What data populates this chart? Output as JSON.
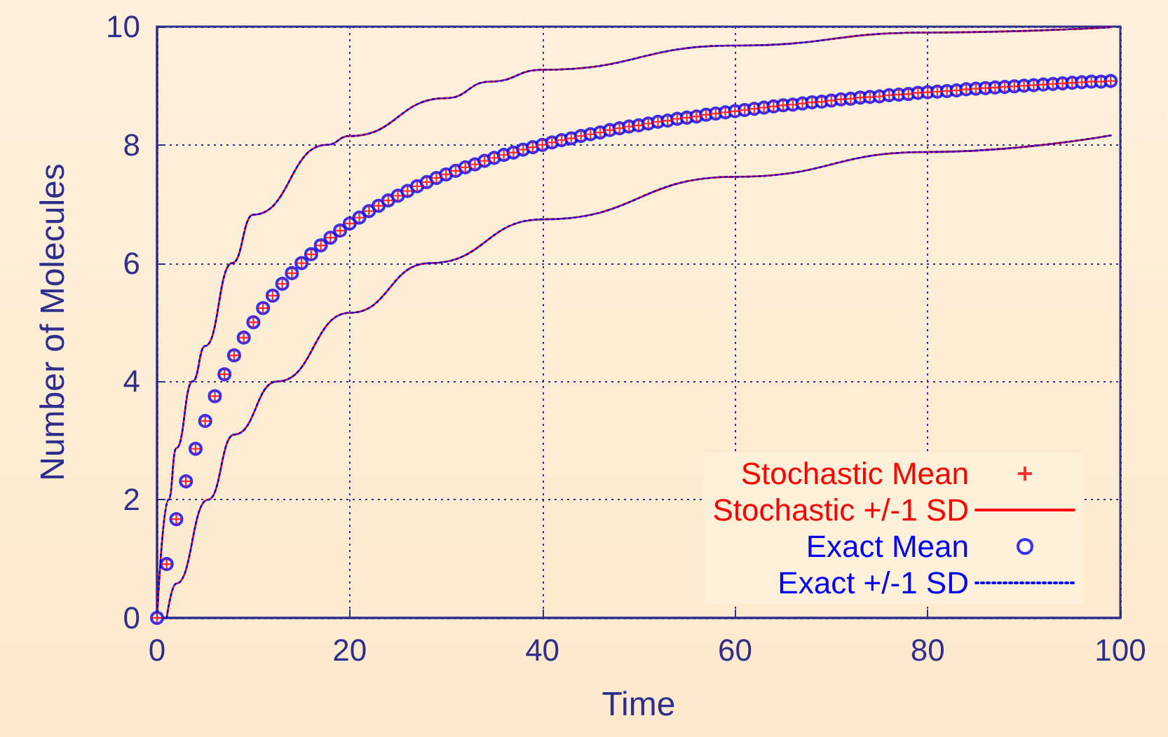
{
  "chart_data": {
    "type": "line",
    "xlabel": "Time",
    "ylabel": "Number of Molecules",
    "xlim": [
      0,
      100
    ],
    "ylim": [
      0,
      10
    ],
    "xticks": [
      0,
      20,
      40,
      60,
      80,
      100
    ],
    "yticks": [
      0,
      2,
      4,
      6,
      8,
      10
    ],
    "grid": true,
    "legend": "bottom right",
    "series": [
      {
        "name": "Stochastic Mean",
        "type": "scatter",
        "marker": "cross",
        "color": "#ff0000",
        "x": [
          0,
          1,
          2,
          3,
          4,
          5,
          6,
          7,
          8,
          9,
          10,
          11,
          12,
          13,
          14,
          15,
          16,
          17,
          18,
          19,
          20,
          21,
          22,
          23,
          24,
          25,
          26,
          27,
          28,
          29,
          30,
          31,
          32,
          33,
          34,
          35,
          36,
          37,
          38,
          39,
          40,
          41,
          42,
          43,
          44,
          45,
          46,
          47,
          48,
          49,
          50,
          51,
          52,
          53,
          54,
          55,
          56,
          57,
          58,
          59,
          60,
          61,
          62,
          63,
          64,
          65,
          66,
          67,
          68,
          69,
          70,
          71,
          72,
          73,
          74,
          75,
          76,
          77,
          78,
          79,
          80,
          81,
          82,
          83,
          84,
          85,
          86,
          87,
          88,
          89,
          90,
          91,
          92,
          93,
          94,
          95,
          96,
          97,
          98,
          99
        ],
        "values": [
          0,
          0.91,
          1.67,
          2.31,
          2.86,
          3.33,
          3.75,
          4.12,
          4.44,
          4.74,
          5.0,
          5.24,
          5.45,
          5.65,
          5.83,
          6.0,
          6.15,
          6.3,
          6.43,
          6.55,
          6.67,
          6.77,
          6.88,
          6.97,
          7.06,
          7.14,
          7.22,
          7.3,
          7.37,
          7.44,
          7.5,
          7.56,
          7.62,
          7.67,
          7.73,
          7.78,
          7.83,
          7.87,
          7.92,
          7.96,
          8.0,
          8.04,
          8.08,
          8.11,
          8.15,
          8.18,
          8.21,
          8.25,
          8.28,
          8.31,
          8.33,
          8.36,
          8.39,
          8.41,
          8.44,
          8.46,
          8.48,
          8.51,
          8.53,
          8.55,
          8.57,
          8.59,
          8.61,
          8.63,
          8.65,
          8.67,
          8.68,
          8.7,
          8.72,
          8.73,
          8.75,
          8.77,
          8.78,
          8.8,
          8.81,
          8.82,
          8.84,
          8.85,
          8.86,
          8.88,
          8.89,
          8.9,
          8.91,
          8.92,
          8.94,
          8.95,
          8.96,
          8.97,
          8.98,
          8.99,
          9.0,
          9.01,
          9.02,
          9.03,
          9.04,
          9.05,
          9.06,
          9.07,
          9.07,
          9.08
        ]
      },
      {
        "name": "Stochastic +/-1 SD",
        "marker": "none",
        "line_style": "solid",
        "color": "#ff0000",
        "x": [
          0,
          1.2,
          2,
          3.7,
          5,
          7.8,
          10,
          17.6,
          20,
          30,
          34.6,
          40,
          60,
          80,
          99
        ],
        "values": [
          0,
          2,
          2.87,
          4,
          4.6,
          6,
          6.82,
          8,
          8.15,
          8.79,
          9.07,
          9.27,
          9.68,
          9.9,
          9.99
        ]
      },
      {
        "marker": "none",
        "line_style": "solid",
        "color": "#ff0000",
        "x": [
          1,
          2,
          5.3,
          8,
          12.5,
          20,
          28.3,
          40,
          60,
          80,
          99
        ],
        "values": [
          0,
          0.58,
          2,
          3.1,
          4,
          5.16,
          6,
          6.74,
          7.46,
          7.88,
          8.16
        ]
      },
      {
        "name": "Exact Mean",
        "type": "scatter",
        "marker": "circle",
        "color": "#0000ff",
        "x": [
          0,
          1,
          2,
          3,
          4,
          5,
          6,
          7,
          8,
          9,
          10,
          11,
          12,
          13,
          14,
          15,
          16,
          17,
          18,
          19,
          20,
          21,
          22,
          23,
          24,
          25,
          26,
          27,
          28,
          29,
          30,
          31,
          32,
          33,
          34,
          35,
          36,
          37,
          38,
          39,
          40,
          41,
          42,
          43,
          44,
          45,
          46,
          47,
          48,
          49,
          50,
          51,
          52,
          53,
          54,
          55,
          56,
          57,
          58,
          59,
          60,
          61,
          62,
          63,
          64,
          65,
          66,
          67,
          68,
          69,
          70,
          71,
          72,
          73,
          74,
          75,
          76,
          77,
          78,
          79,
          80,
          81,
          82,
          83,
          84,
          85,
          86,
          87,
          88,
          89,
          90,
          91,
          92,
          93,
          94,
          95,
          96,
          97,
          98,
          99
        ],
        "values": [
          0,
          0.91,
          1.67,
          2.31,
          2.86,
          3.33,
          3.75,
          4.12,
          4.44,
          4.74,
          5.0,
          5.24,
          5.45,
          5.65,
          5.83,
          6.0,
          6.15,
          6.3,
          6.43,
          6.55,
          6.67,
          6.77,
          6.88,
          6.97,
          7.06,
          7.14,
          7.22,
          7.3,
          7.37,
          7.44,
          7.5,
          7.56,
          7.62,
          7.67,
          7.73,
          7.78,
          7.83,
          7.87,
          7.92,
          7.96,
          8.0,
          8.04,
          8.08,
          8.11,
          8.15,
          8.18,
          8.21,
          8.25,
          8.28,
          8.31,
          8.33,
          8.36,
          8.39,
          8.41,
          8.44,
          8.46,
          8.48,
          8.51,
          8.53,
          8.55,
          8.57,
          8.59,
          8.61,
          8.63,
          8.65,
          8.67,
          8.68,
          8.7,
          8.72,
          8.73,
          8.75,
          8.77,
          8.78,
          8.8,
          8.81,
          8.82,
          8.84,
          8.85,
          8.86,
          8.88,
          8.89,
          8.9,
          8.91,
          8.92,
          8.94,
          8.95,
          8.96,
          8.97,
          8.98,
          8.99,
          9.0,
          9.01,
          9.02,
          9.03,
          9.04,
          9.05,
          9.06,
          9.07,
          9.07,
          9.08
        ]
      },
      {
        "name": "Exact +/-1 SD",
        "marker": "none",
        "line_style": "dotted",
        "color": "#0000ff",
        "x": [
          0,
          1.2,
          2,
          3.7,
          5,
          7.8,
          10,
          17.6,
          20,
          30,
          34.6,
          40,
          60,
          80,
          99
        ],
        "values": [
          0,
          2,
          2.87,
          4,
          4.6,
          6,
          6.82,
          8,
          8.15,
          8.79,
          9.07,
          9.27,
          9.68,
          9.9,
          9.99
        ]
      },
      {
        "marker": "none",
        "line_style": "dotted",
        "color": "#0000ff",
        "x": [
          1,
          2,
          5.3,
          8,
          12.5,
          20,
          28.3,
          40,
          60,
          80,
          99
        ],
        "values": [
          0,
          0.58,
          2,
          3.1,
          4,
          5.16,
          6,
          6.74,
          7.46,
          7.88,
          8.16
        ]
      }
    ]
  }
}
